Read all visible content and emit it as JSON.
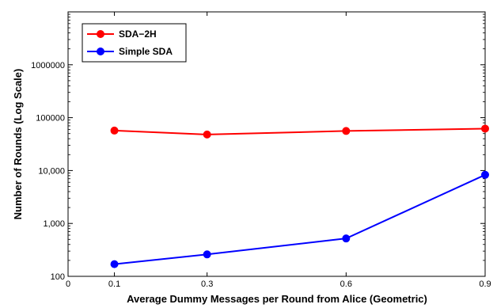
{
  "chart_data": {
    "type": "line",
    "title": "",
    "xlabel": "Average Dummy Messages per Round from Alice (Geometric)",
    "ylabel": "Number of Rounds (Log Scale)",
    "x": [
      0.1,
      0.3,
      0.6,
      0.9
    ],
    "xlim": [
      0,
      0.9
    ],
    "x_ticks": [
      0,
      0.1,
      0.3,
      0.6,
      0.9
    ],
    "x_tick_labels": [
      "0",
      "0.1",
      "0.3",
      "0.6",
      "0.9"
    ],
    "y_scale": "log",
    "ylim": [
      100,
      10000000
    ],
    "y_ticks": [
      100,
      1000,
      10000,
      100000,
      1000000
    ],
    "y_tick_labels": [
      "100",
      "1,000",
      "10,000",
      "100000",
      "1000000"
    ],
    "grid": false,
    "legend_position": "top-left",
    "series": [
      {
        "name": "SDA−2H",
        "color": "#ff0000",
        "values": [
          57000,
          48000,
          56000,
          62000
        ]
      },
      {
        "name": "Simple SDA",
        "color": "#0000ff",
        "values": [
          170,
          260,
          520,
          8300
        ]
      }
    ]
  }
}
